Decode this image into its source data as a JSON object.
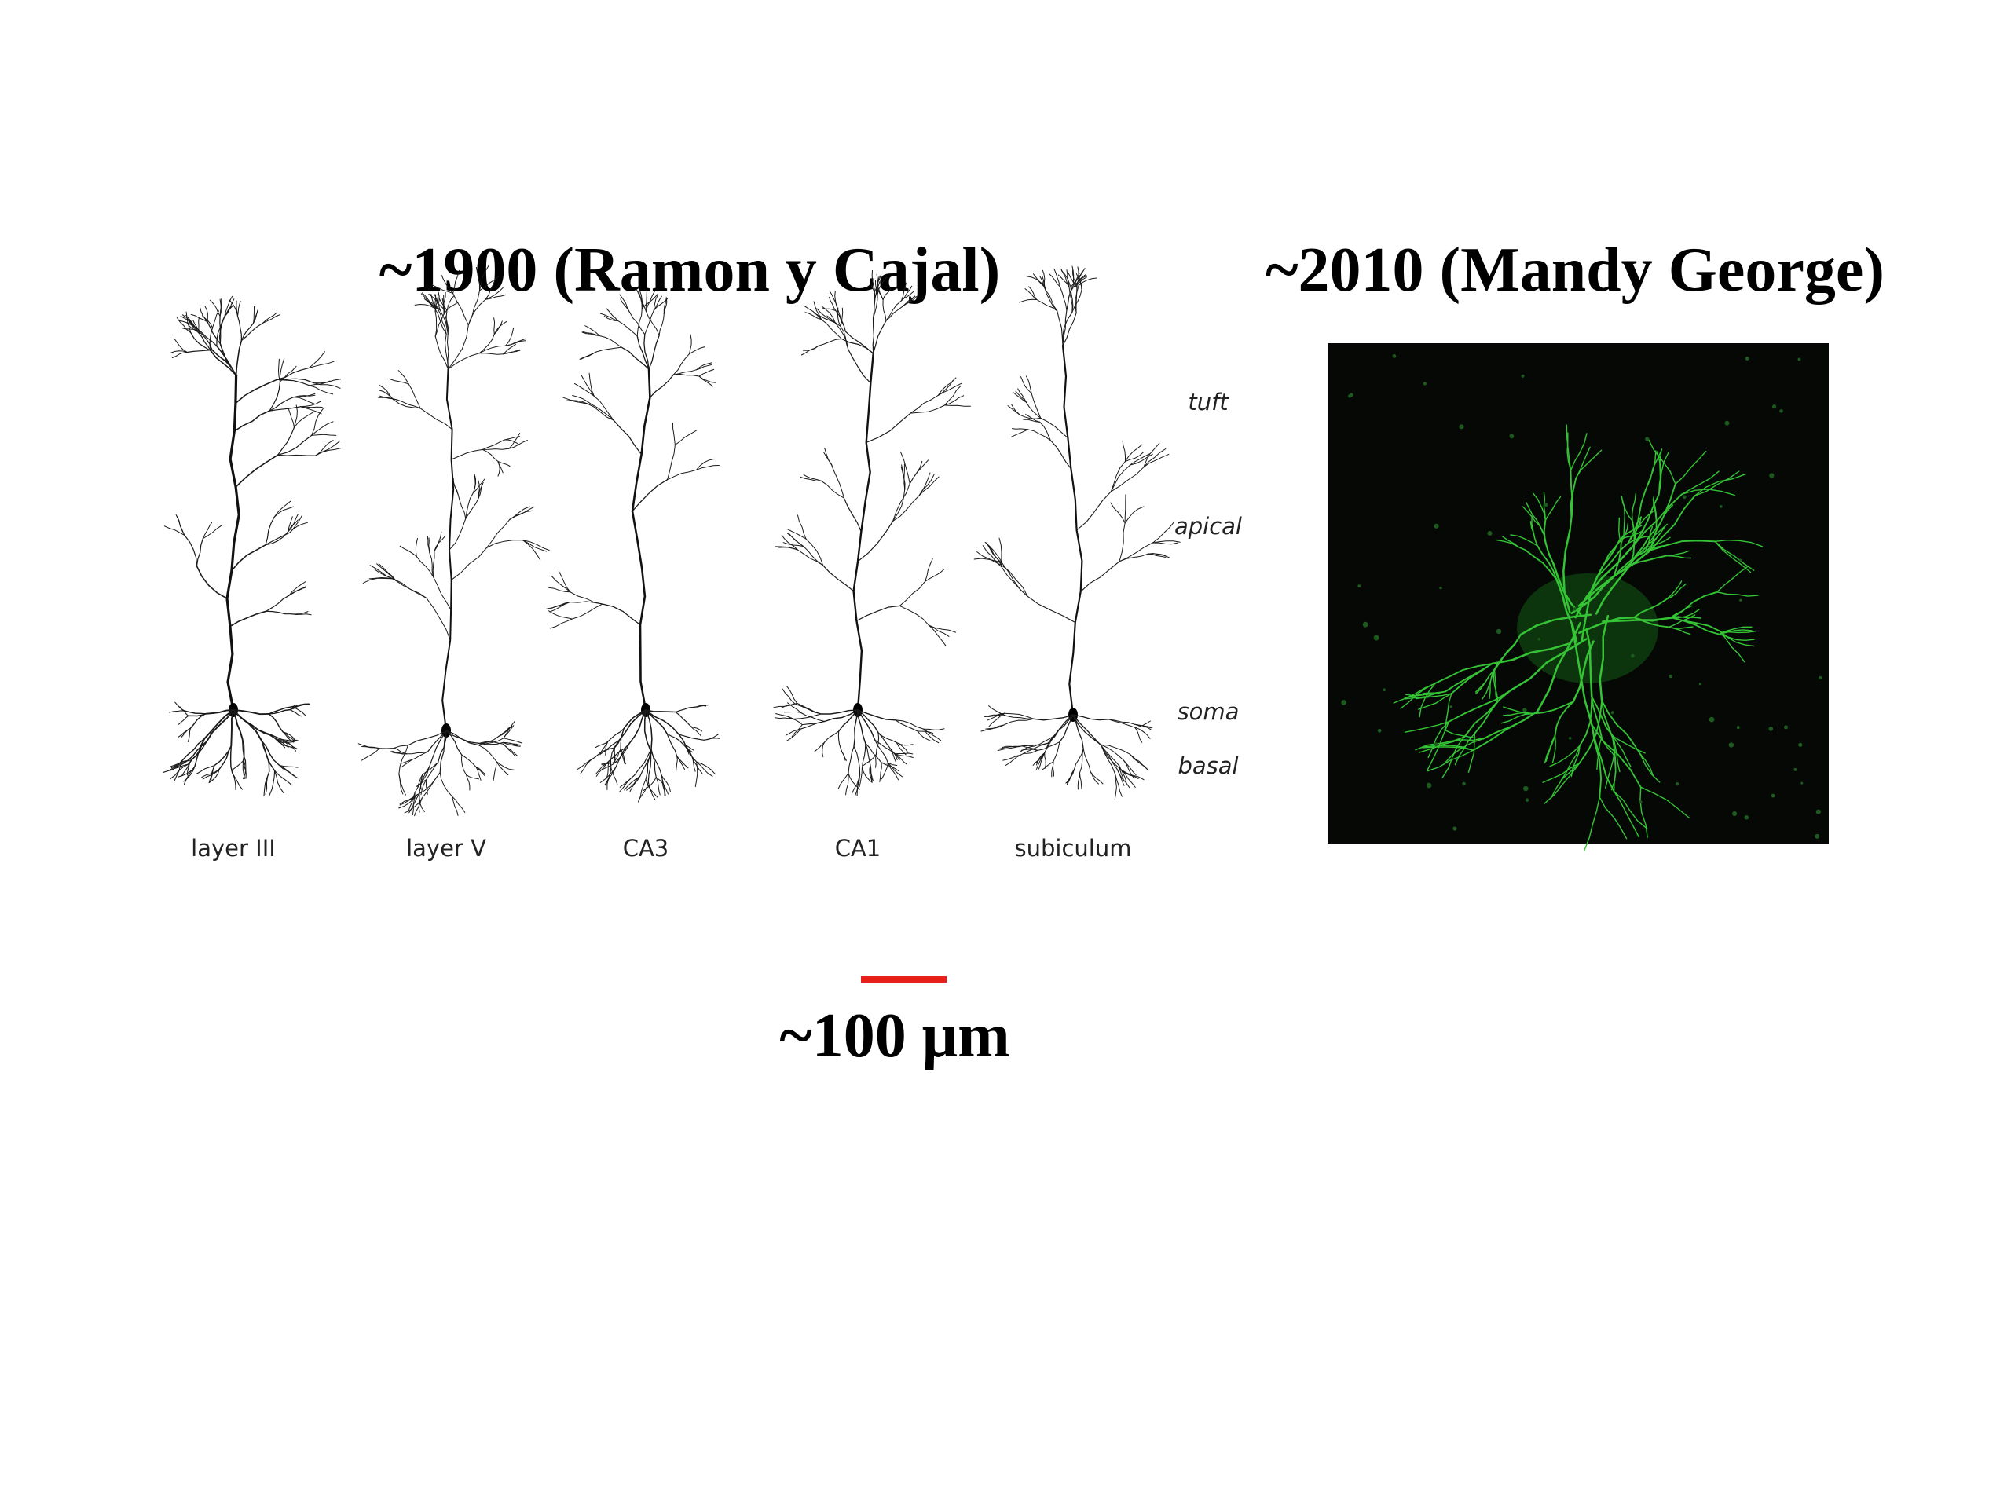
{
  "header": {
    "left_title": "~1900 (Ramon y Cajal)",
    "right_title": "~2010 (Mandy George)"
  },
  "neurons": {
    "labels": [
      "layer III",
      "layer V",
      "CA3",
      "CA1",
      "subiculum"
    ]
  },
  "compartments": {
    "labels": [
      "tuft",
      "apical",
      "soma",
      "basal"
    ]
  },
  "scale_bar": {
    "label": "~100 μm"
  }
}
